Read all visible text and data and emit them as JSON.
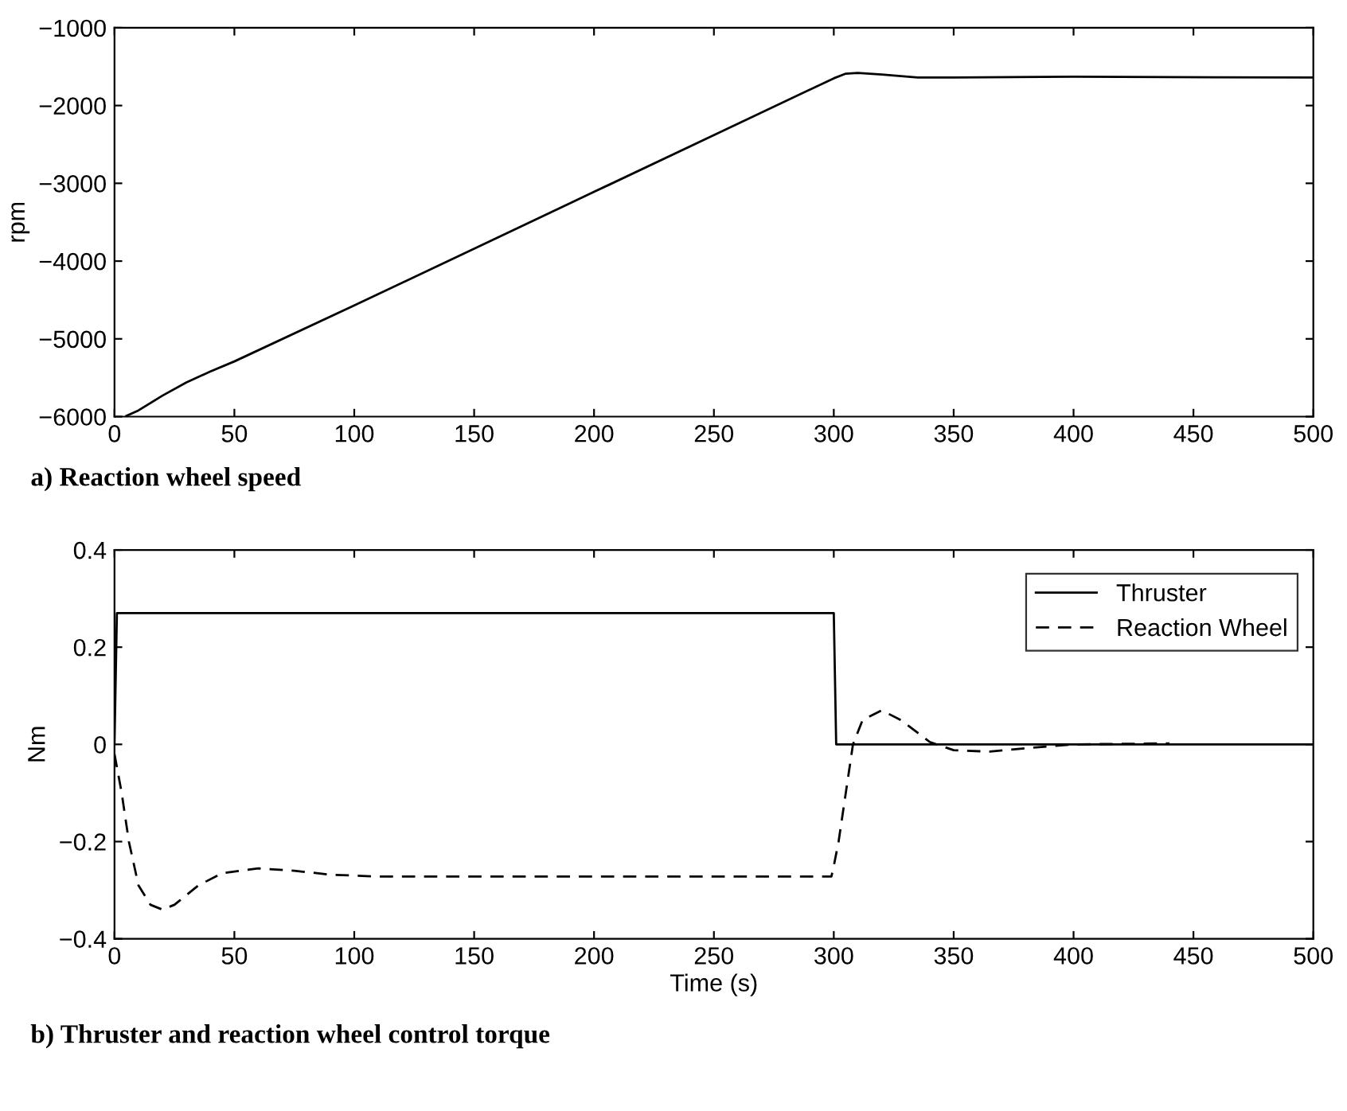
{
  "chart_data": [
    {
      "type": "line",
      "title": "a) Reaction wheel speed",
      "ylabel": "rpm",
      "xlim": [
        0,
        500
      ],
      "xticks": [
        0,
        50,
        100,
        150,
        200,
        250,
        300,
        350,
        400,
        450,
        500
      ],
      "ylim": [
        -6000,
        -1000
      ],
      "yticks": [
        -6000,
        -5000,
        -4000,
        -3000,
        -2000,
        -1000
      ],
      "grid": false,
      "legend": false,
      "series": [
        {
          "color": "#000000",
          "line_style": "solid",
          "x": [
            5,
            10,
            20,
            30,
            40,
            50,
            100,
            150,
            200,
            250,
            300,
            305,
            310,
            320,
            335,
            350,
            400,
            500
          ],
          "values": [
            -5990,
            -5920,
            -5730,
            -5560,
            -5420,
            -5290,
            -4570,
            -3840,
            -3110,
            -2380,
            -1650,
            -1590,
            -1580,
            -1600,
            -1640,
            -1640,
            -1630,
            -1640
          ]
        }
      ]
    },
    {
      "type": "line",
      "title": "b) Thruster and reaction wheel control torque",
      "xlabel": "Time (s)",
      "ylabel": "Nm",
      "xlim": [
        0,
        500
      ],
      "xticks": [
        0,
        50,
        100,
        150,
        200,
        250,
        300,
        350,
        400,
        450,
        500
      ],
      "ylim": [
        -0.4,
        0.4
      ],
      "yticks": [
        -0.4,
        -0.2,
        0,
        0.2,
        0.4
      ],
      "grid": false,
      "legend": "top right",
      "series": [
        {
          "name": "Thruster",
          "color": "#000000",
          "line_style": "solid",
          "x": [
            0,
            1,
            300,
            301,
            500
          ],
          "values": [
            0,
            0.27,
            0.27,
            0,
            0
          ]
        },
        {
          "name": "Reaction Wheel",
          "color": "#000000",
          "line_style": "dashed",
          "x": [
            0,
            3,
            6,
            10,
            15,
            20,
            25,
            35,
            45,
            60,
            75,
            90,
            110,
            200,
            299,
            300,
            302,
            305,
            308,
            312,
            320,
            328,
            340,
            350,
            365,
            380,
            400,
            440
          ],
          "values": [
            -0.02,
            -0.1,
            -0.2,
            -0.29,
            -0.33,
            -0.34,
            -0.33,
            -0.29,
            -0.265,
            -0.255,
            -0.26,
            -0.268,
            -0.272,
            -0.272,
            -0.272,
            -0.25,
            -0.2,
            -0.1,
            0,
            0.05,
            0.07,
            0.05,
            0.005,
            -0.012,
            -0.015,
            -0.008,
            0,
            0.002
          ]
        }
      ]
    }
  ]
}
